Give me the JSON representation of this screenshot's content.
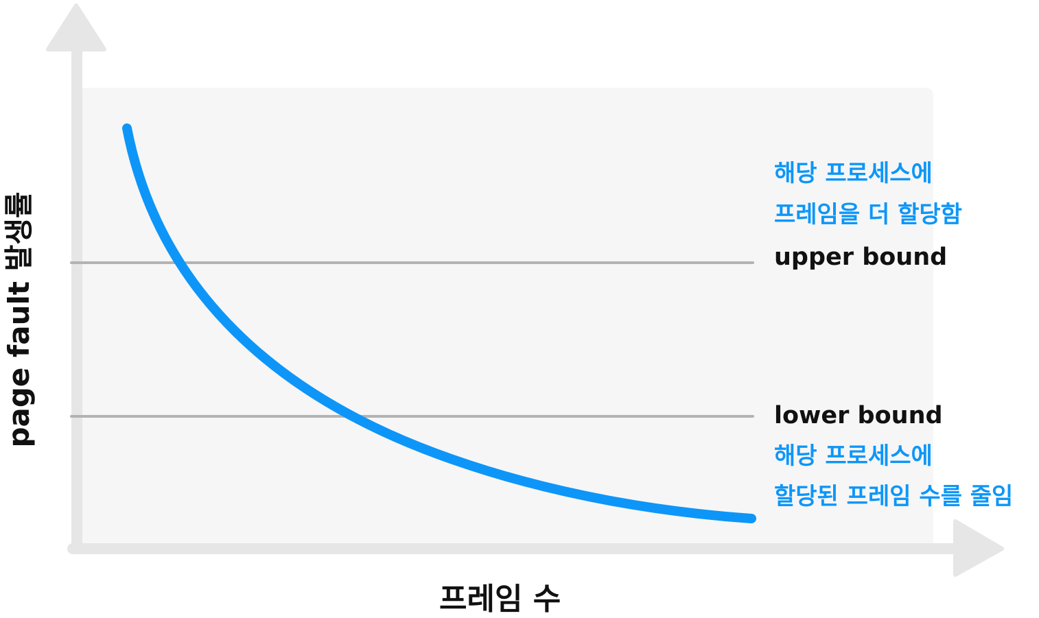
{
  "axes": {
    "x_label": "프레임 수",
    "y_label": "page fault 발생률"
  },
  "curve": {
    "color": "#0d96f8",
    "description_shape": "decreasing"
  },
  "thresholds": {
    "upper": {
      "label": "upper bound",
      "line_color": "#b3b3b3"
    },
    "lower": {
      "label": "lower bound",
      "line_color": "#b3b3b3"
    }
  },
  "annotations": {
    "above_upper": {
      "line1": "해당 프로세스에",
      "line2": "프레임을 더 할당함"
    },
    "below_lower": {
      "line1": "해당 프로세스에",
      "line2": "할당된 프레임 수를 줄임"
    }
  },
  "colors": {
    "accent": "#0d96f8",
    "axis": "#e6e6e6",
    "plot_background": "#f6f6f6",
    "text": "#111111"
  }
}
